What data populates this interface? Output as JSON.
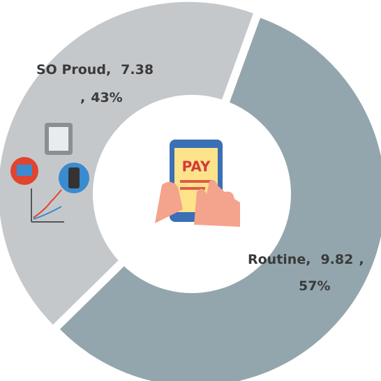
{
  "chart_data": {
    "type": "pie",
    "categories": [
      "SO Proud",
      "Routine"
    ],
    "values": [
      7.38,
      9.82
    ],
    "percent_labels": [
      "43%",
      "57%"
    ],
    "separator": ",",
    "colors": [
      "#c5c8cb",
      "#93a6ad"
    ],
    "donut": true
  }
}
